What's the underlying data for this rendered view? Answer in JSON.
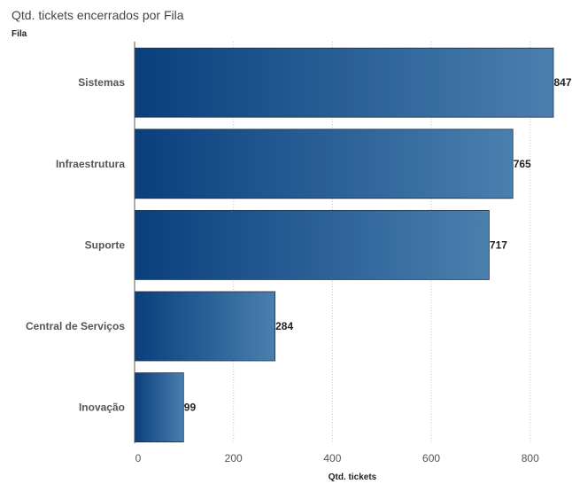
{
  "chart_data": {
    "type": "bar",
    "orientation": "horizontal",
    "title": "Qtd. tickets encerrados por Fila",
    "ylabel": "Fila",
    "xlabel": "Qtd. tickets",
    "categories": [
      "Sistemas",
      "Infraestrutura",
      "Suporte",
      "Central de Serviços",
      "Inovação"
    ],
    "values": [
      847,
      765,
      717,
      284,
      99
    ],
    "xlim": [
      0,
      860
    ],
    "xticks": [
      0,
      200,
      400,
      600,
      800
    ],
    "grid": "vertical-dotted",
    "data_labels": true,
    "colors": {
      "bar_start": "#0a3f7d",
      "bar_end": "#4a7fae",
      "bar_stroke": "#1c2e44"
    }
  }
}
